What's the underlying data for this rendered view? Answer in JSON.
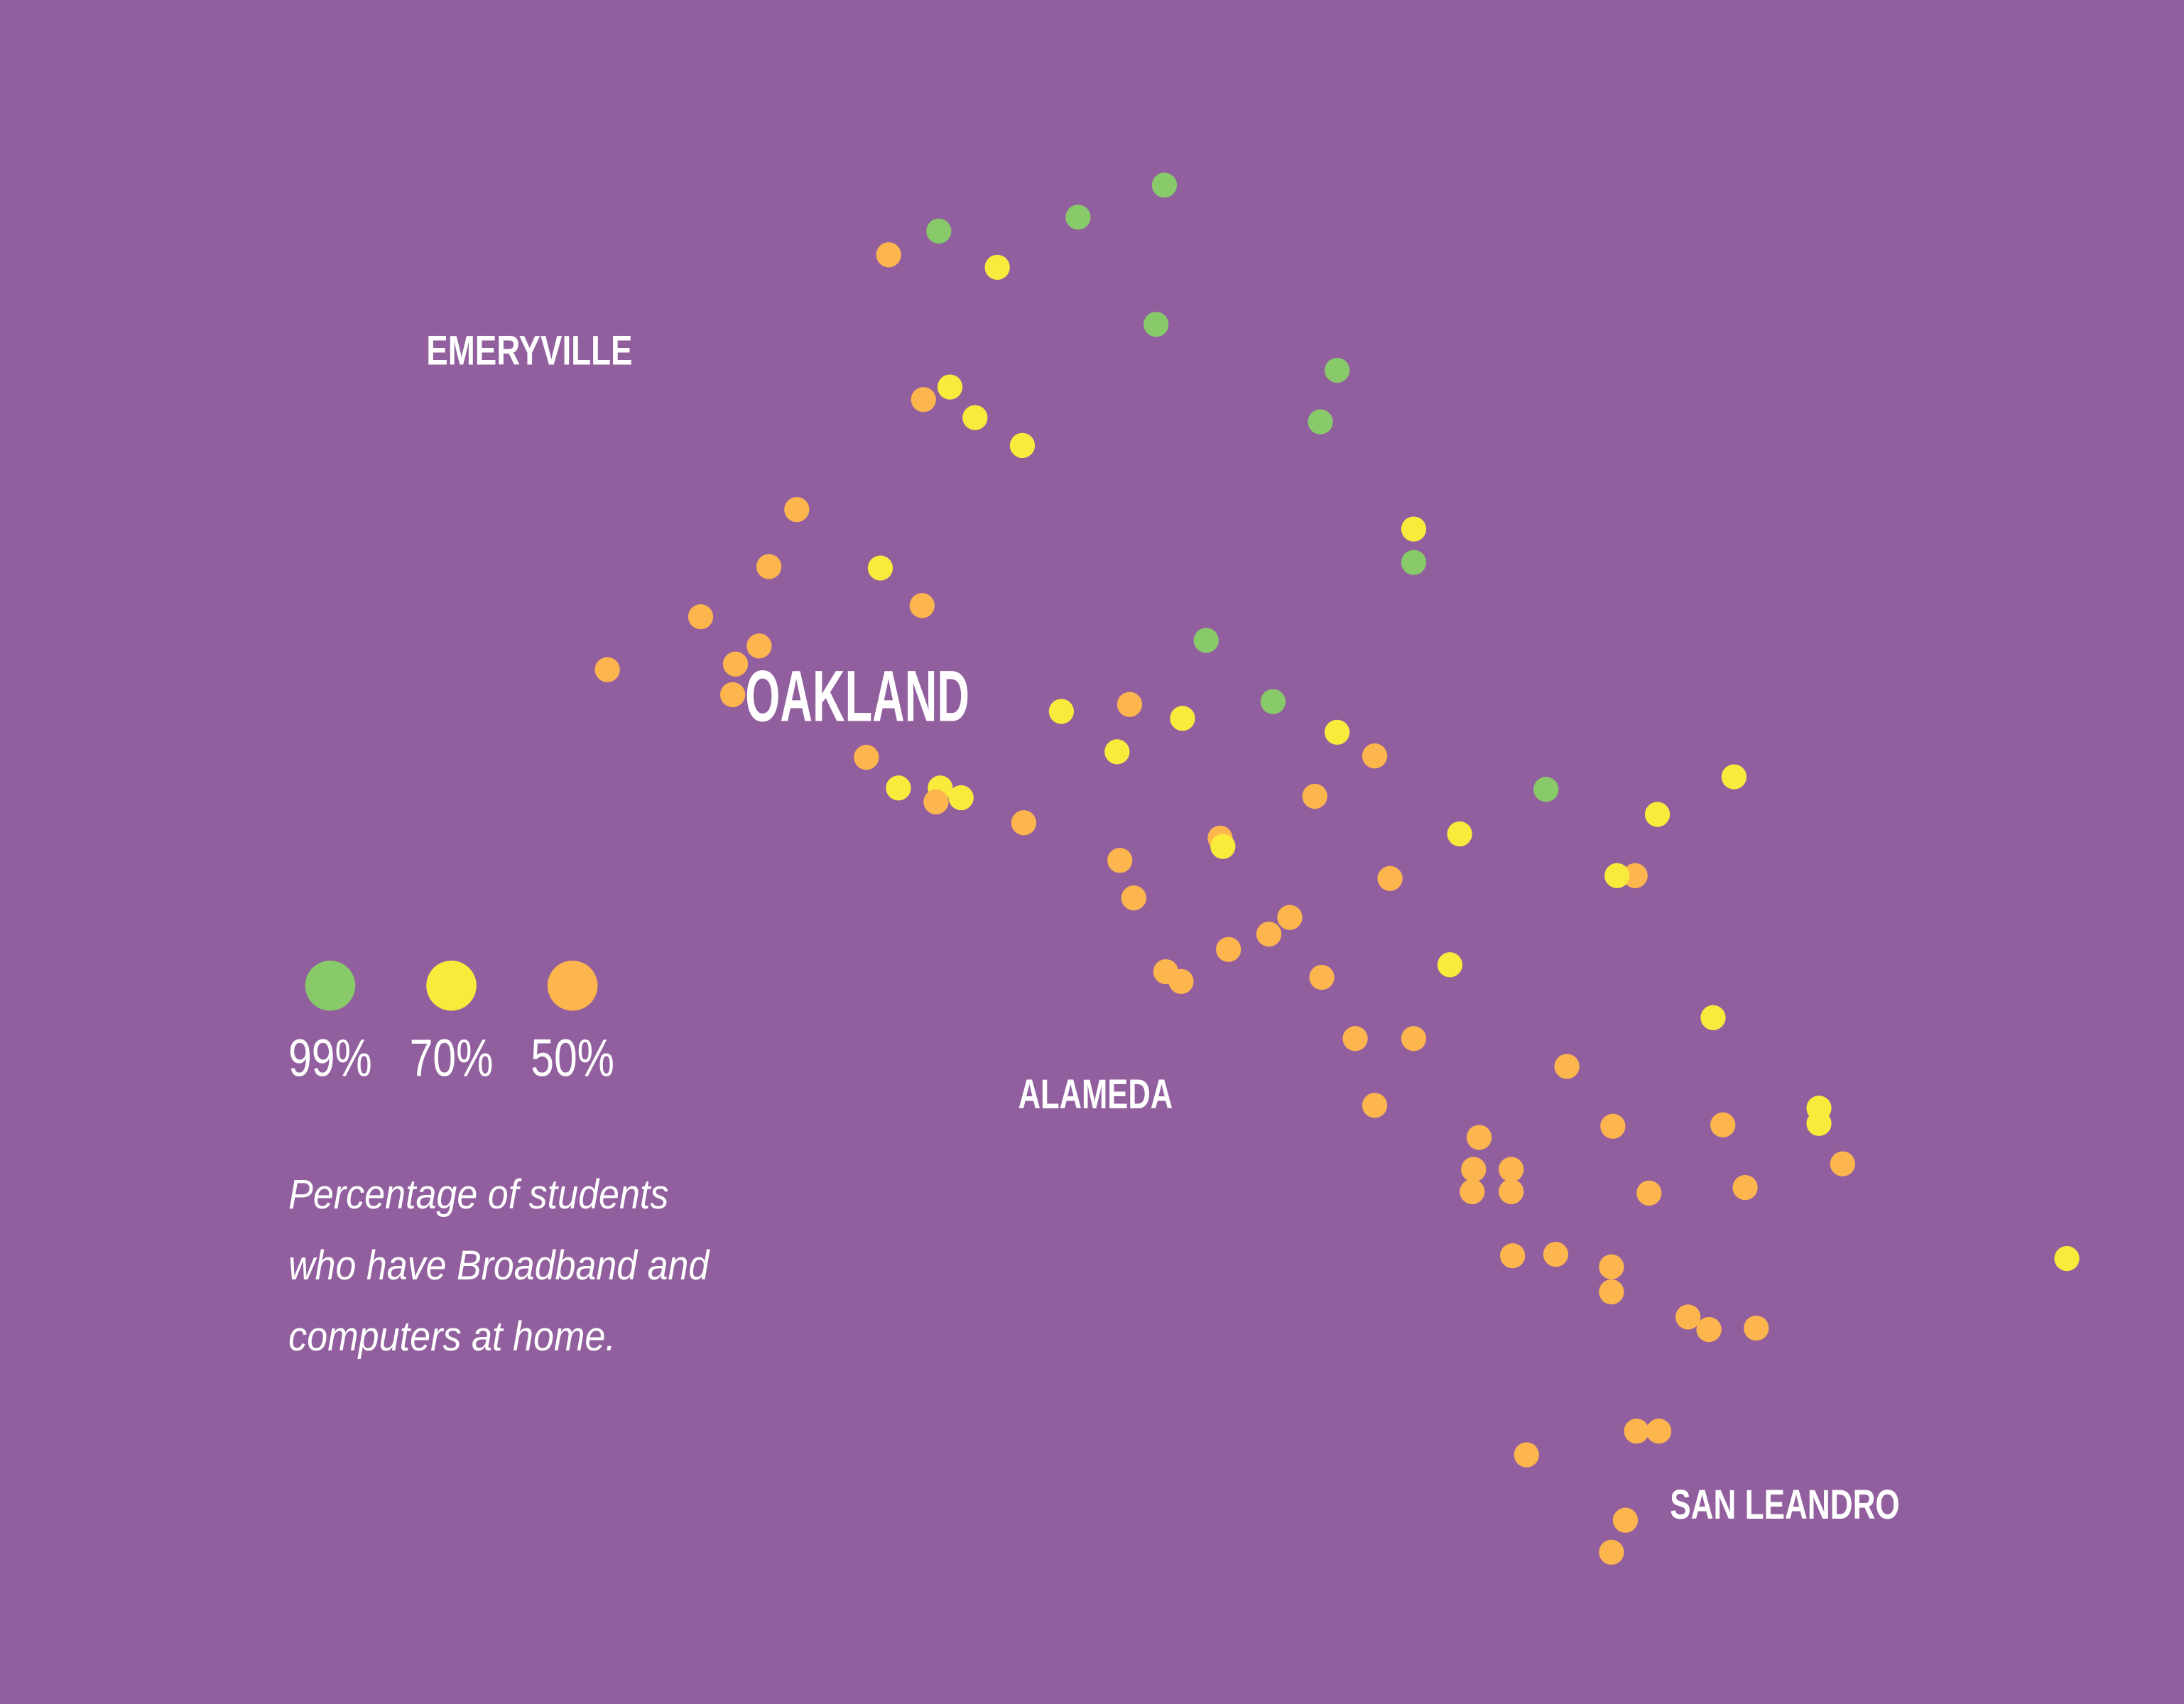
{
  "places": [
    {
      "name": "EMERYVILLE"
    },
    {
      "name": "OAKLAND"
    },
    {
      "name": "ALAMEDA"
    },
    {
      "name": "SAN LEANDRO"
    }
  ],
  "legend": [
    {
      "value": 99,
      "label": "99%",
      "color": "#88c96a"
    },
    {
      "value": 70,
      "label": "70%",
      "color": "#f8eb3c"
    },
    {
      "value": 50,
      "label": "50%",
      "color": "#fdb54e"
    }
  ],
  "caption": [
    "Percentage of students",
    "who have Broadband and",
    "computers at home."
  ],
  "points": [
    99,
    99,
    99,
    50,
    70,
    99,
    99,
    99,
    50,
    70,
    70,
    70,
    50,
    50,
    70,
    50,
    50,
    50,
    50,
    50,
    50,
    70,
    99,
    99,
    99,
    70,
    50,
    70,
    70,
    50,
    70,
    50,
    70,
    70,
    50,
    70,
    50,
    50,
    99,
    70,
    70,
    70,
    50,
    70,
    50,
    50,
    50,
    50,
    70,
    50,
    50,
    50,
    50,
    50,
    50,
    70,
    70,
    50,
    50,
    50,
    50,
    50,
    50,
    50,
    70,
    70,
    50,
    50,
    50,
    50,
    50,
    50,
    50,
    70,
    50,
    50,
    50,
    50,
    50,
    50,
    50,
    50,
    50,
    50,
    50,
    50
  ]
}
